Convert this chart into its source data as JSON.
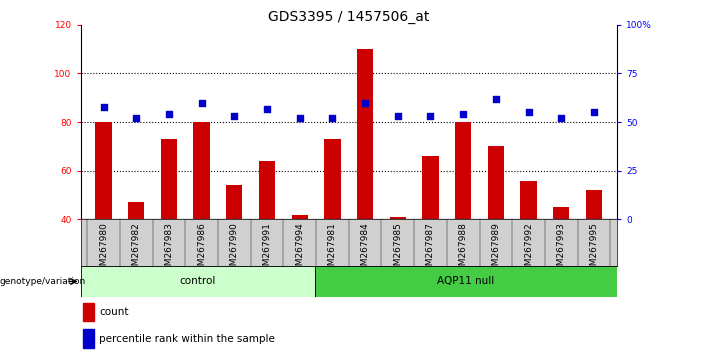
{
  "title": "GDS3395 / 1457506_at",
  "samples": [
    "GSM267980",
    "GSM267982",
    "GSM267983",
    "GSM267986",
    "GSM267990",
    "GSM267991",
    "GSM267994",
    "GSM267981",
    "GSM267984",
    "GSM267985",
    "GSM267987",
    "GSM267988",
    "GSM267989",
    "GSM267992",
    "GSM267993",
    "GSM267995"
  ],
  "counts": [
    80,
    47,
    73,
    80,
    54,
    64,
    42,
    73,
    110,
    41,
    66,
    80,
    70,
    56,
    45,
    52
  ],
  "percentile_ranks": [
    58,
    52,
    54,
    60,
    53,
    57,
    52,
    52,
    60,
    53,
    53,
    54,
    62,
    55,
    52,
    55
  ],
  "control_count": 7,
  "aqp11_count": 9,
  "ylim_left": [
    40,
    120
  ],
  "ylim_right": [
    0,
    100
  ],
  "yticks_left": [
    40,
    60,
    80,
    100,
    120
  ],
  "yticks_right": [
    0,
    25,
    50,
    75,
    100
  ],
  "ytick_labels_left": [
    "40",
    "60",
    "80",
    "100",
    "120"
  ],
  "ytick_labels_right": [
    "0",
    "25",
    "50",
    "75",
    "100%"
  ],
  "bar_color": "#cc0000",
  "dot_color": "#0000cc",
  "control_bg": "#ccffcc",
  "aqp11_bg": "#44cc44",
  "xticklabel_bg": "#d0d0d0",
  "genotype_label": "genotype/variation",
  "control_label": "control",
  "aqp11_label": "AQP11 null",
  "legend_count": "count",
  "legend_percentile": "percentile rank within the sample",
  "bar_width": 0.5,
  "title_fontsize": 10,
  "tick_fontsize": 6.5,
  "label_fontsize": 7.5
}
